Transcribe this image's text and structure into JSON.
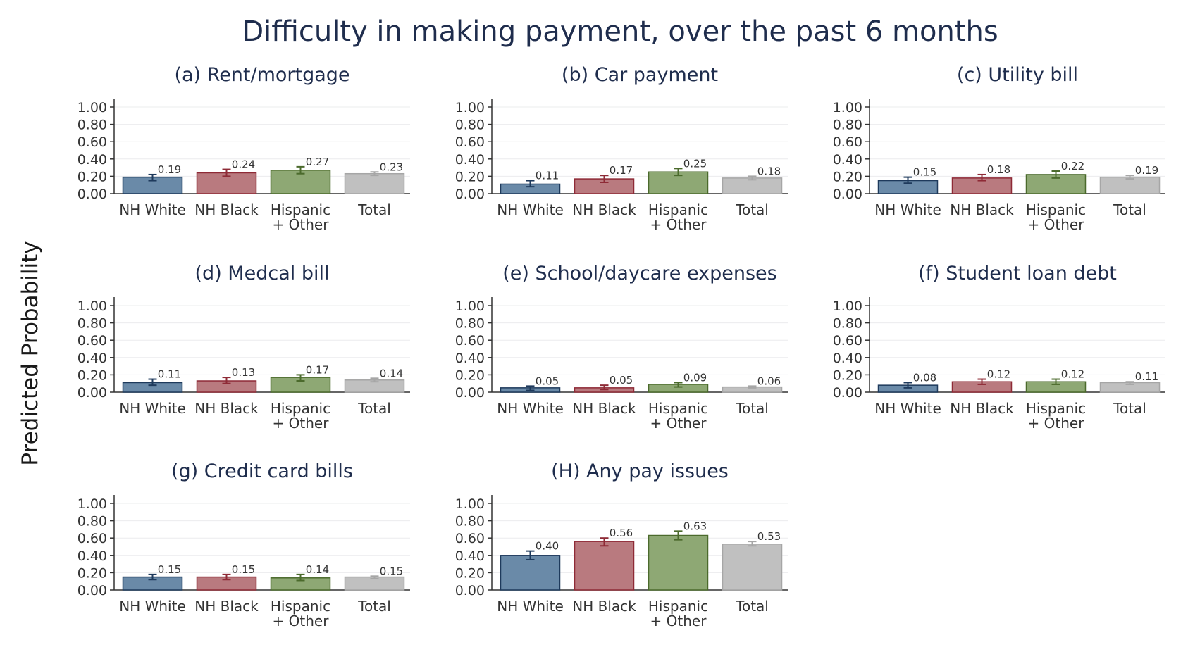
{
  "figure_title": "Difficulty in making payment, over the past 6 months",
  "y_axis_title": "Predicted Probability",
  "colors": {
    "title": "#1f2d4d",
    "series": [
      "#6a8aa8",
      "#b97a7f",
      "#8ea874",
      "#c0c0c0"
    ],
    "series_edge": [
      "#1e3a5c",
      "#8e2a36",
      "#4b6a2c",
      "#a6a6a6"
    ],
    "grid": "#ebecee"
  },
  "chart_data": [
    {
      "type": "bar",
      "title": "(a) Rent/mortgage",
      "categories": [
        "NH White",
        "NH Black",
        "Hispanic\n+ Other",
        "Total"
      ],
      "values": [
        0.19,
        0.24,
        0.27,
        0.23
      ],
      "value_labels": [
        "0.19",
        "0.24",
        "0.27",
        "0.23"
      ],
      "error_low": [
        0.15,
        0.2,
        0.23,
        0.21
      ],
      "error_high": [
        0.22,
        0.28,
        0.31,
        0.25
      ],
      "yticks": [
        "0.00",
        "0.20",
        "0.40",
        "0.60",
        "0.80",
        "1.00"
      ],
      "ylim": [
        0,
        1
      ],
      "grid": true
    },
    {
      "type": "bar",
      "title": "(b) Car payment",
      "categories": [
        "NH White",
        "NH Black",
        "Hispanic\n+ Other",
        "Total"
      ],
      "values": [
        0.11,
        0.17,
        0.25,
        0.18
      ],
      "value_labels": [
        "0.11",
        "0.17",
        "0.25",
        "0.18"
      ],
      "error_low": [
        0.08,
        0.13,
        0.21,
        0.16
      ],
      "error_high": [
        0.15,
        0.21,
        0.29,
        0.2
      ],
      "yticks": [
        "0.00",
        "0.20",
        "0.40",
        "0.60",
        "0.80",
        "1.00"
      ],
      "ylim": [
        0,
        1
      ],
      "grid": true
    },
    {
      "type": "bar",
      "title": "(c) Utility bill",
      "categories": [
        "NH White",
        "NH Black",
        "Hispanic\n+ Other",
        "Total"
      ],
      "values": [
        0.15,
        0.18,
        0.22,
        0.19
      ],
      "value_labels": [
        "0.15",
        "0.18",
        "0.22",
        "0.19"
      ],
      "error_low": [
        0.12,
        0.15,
        0.18,
        0.17
      ],
      "error_high": [
        0.19,
        0.22,
        0.26,
        0.21
      ],
      "yticks": [
        "0.00",
        "0.20",
        "0.40",
        "0.60",
        "0.80",
        "1.00"
      ],
      "ylim": [
        0,
        1
      ],
      "grid": true
    },
    {
      "type": "bar",
      "title": "(d) Medcal bill",
      "categories": [
        "NH White",
        "NH Black",
        "Hispanic\n+ Other",
        "Total"
      ],
      "values": [
        0.11,
        0.13,
        0.17,
        0.14
      ],
      "value_labels": [
        "0.11",
        "0.13",
        "0.17",
        "0.14"
      ],
      "error_low": [
        0.08,
        0.1,
        0.13,
        0.12
      ],
      "error_high": [
        0.15,
        0.17,
        0.2,
        0.16
      ],
      "yticks": [
        "0.00",
        "0.20",
        "0.40",
        "0.60",
        "0.80",
        "1.00"
      ],
      "ylim": [
        0,
        1
      ],
      "grid": true
    },
    {
      "type": "bar",
      "title": "(e) School/daycare expenses",
      "categories": [
        "NH White",
        "NH Black",
        "Hispanic\n+ Other",
        "Total"
      ],
      "values": [
        0.05,
        0.05,
        0.09,
        0.06
      ],
      "value_labels": [
        "0.05",
        "0.05",
        "0.09",
        "0.06"
      ],
      "error_low": [
        0.02,
        0.03,
        0.06,
        0.05
      ],
      "error_high": [
        0.07,
        0.08,
        0.11,
        0.07
      ],
      "yticks": [
        "0.00",
        "0.20",
        "0.40",
        "0.60",
        "0.80",
        "1.00"
      ],
      "ylim": [
        0,
        1
      ],
      "grid": true
    },
    {
      "type": "bar",
      "title": "(f) Student loan debt",
      "categories": [
        "NH White",
        "NH Black",
        "Hispanic\n+ Other",
        "Total"
      ],
      "values": [
        0.08,
        0.12,
        0.12,
        0.11
      ],
      "value_labels": [
        "0.08",
        "0.12",
        "0.12",
        "0.11"
      ],
      "error_low": [
        0.05,
        0.09,
        0.09,
        0.09
      ],
      "error_high": [
        0.11,
        0.15,
        0.15,
        0.12
      ],
      "yticks": [
        "0.00",
        "0.20",
        "0.40",
        "0.60",
        "0.80",
        "1.00"
      ],
      "ylim": [
        0,
        1
      ],
      "grid": true
    },
    {
      "type": "bar",
      "title": "(g) Credit card bills",
      "categories": [
        "NH White",
        "NH Black",
        "Hispanic\n+ Other",
        "Total"
      ],
      "values": [
        0.15,
        0.15,
        0.14,
        0.15
      ],
      "value_labels": [
        "0.15",
        "0.15",
        "0.14",
        "0.15"
      ],
      "error_low": [
        0.12,
        0.12,
        0.11,
        0.13
      ],
      "error_high": [
        0.18,
        0.18,
        0.18,
        0.16
      ],
      "yticks": [
        "0.00",
        "0.20",
        "0.40",
        "0.60",
        "0.80",
        "1.00"
      ],
      "ylim": [
        0,
        1
      ],
      "grid": true
    },
    {
      "type": "bar",
      "title": "(H) Any pay issues",
      "categories": [
        "NH White",
        "NH Black",
        "Hispanic\n+ Other",
        "Total"
      ],
      "values": [
        0.4,
        0.56,
        0.63,
        0.53
      ],
      "value_labels": [
        "0.40",
        "0.56",
        "0.63",
        "0.53"
      ],
      "error_low": [
        0.35,
        0.51,
        0.58,
        0.51
      ],
      "error_high": [
        0.45,
        0.6,
        0.68,
        0.56
      ],
      "yticks": [
        "0.00",
        "0.20",
        "0.40",
        "0.60",
        "0.80",
        "1.00"
      ],
      "ylim": [
        0,
        1
      ],
      "grid": true
    }
  ]
}
